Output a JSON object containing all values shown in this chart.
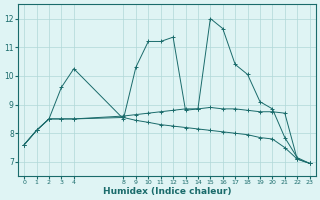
{
  "background_color": "#dff4f4",
  "line_color": "#1a6b6b",
  "grid_color": "#b0d8d8",
  "xlabel": "Humidex (Indice chaleur)",
  "xlim": [
    -0.5,
    23.5
  ],
  "ylim": [
    6.5,
    12.5
  ],
  "yticks": [
    7,
    8,
    9,
    10,
    11,
    12
  ],
  "xtick_positions": [
    0,
    1,
    2,
    3,
    4,
    8,
    9,
    10,
    11,
    12,
    13,
    14,
    15,
    16,
    17,
    18,
    19,
    20,
    21,
    22,
    23
  ],
  "xtick_labels": [
    "0",
    "1",
    "2",
    "3",
    "4",
    "8",
    "9",
    "10",
    "11",
    "12",
    "13",
    "14",
    "15",
    "16",
    "17",
    "18",
    "19",
    "20",
    "21",
    "22",
    "23"
  ],
  "line1_x": [
    0,
    1,
    2,
    3,
    4,
    8,
    9,
    10,
    11,
    12,
    13,
    14,
    15,
    16,
    17,
    18,
    19,
    20,
    21,
    22,
    23
  ],
  "line1_y": [
    7.6,
    8.1,
    8.5,
    9.6,
    10.25,
    8.5,
    10.3,
    11.2,
    11.2,
    11.35,
    8.8,
    8.85,
    12.0,
    11.65,
    10.4,
    10.05,
    9.1,
    8.85,
    7.85,
    7.15,
    6.95
  ],
  "line2_x": [
    0,
    1,
    2,
    3,
    4,
    8,
    9,
    10,
    11,
    12,
    13,
    14,
    15,
    16,
    17,
    18,
    19,
    20,
    21,
    22,
    23
  ],
  "line2_y": [
    7.6,
    8.1,
    8.5,
    8.5,
    8.5,
    8.55,
    8.45,
    8.38,
    8.3,
    8.25,
    8.2,
    8.15,
    8.1,
    8.05,
    8.0,
    7.95,
    7.85,
    7.8,
    7.5,
    7.1,
    6.95
  ],
  "line3_x": [
    0,
    1,
    2,
    3,
    4,
    8,
    9,
    10,
    11,
    12,
    13,
    14,
    15,
    16,
    17,
    18,
    19,
    20,
    21,
    22,
    23
  ],
  "line3_y": [
    7.6,
    8.1,
    8.5,
    8.5,
    8.5,
    8.6,
    8.65,
    8.7,
    8.75,
    8.8,
    8.85,
    8.85,
    8.9,
    8.85,
    8.85,
    8.8,
    8.75,
    8.75,
    8.7,
    7.1,
    6.95
  ]
}
